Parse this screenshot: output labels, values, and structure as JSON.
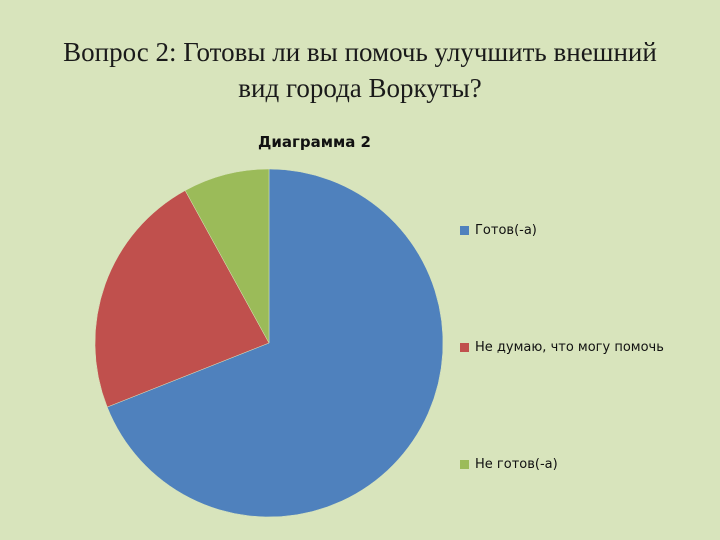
{
  "slide": {
    "title_line1": "Вопрос 2: Готовы ли вы помочь улучшить внешний",
    "title_line2": "вид города Воркуты?"
  },
  "chart_data": {
    "type": "pie",
    "title": "Диаграмма 2",
    "legend_position": "right",
    "categories": [
      "Готов(-а)",
      "Не думаю, что могу помочь",
      "Не готов(-а)"
    ],
    "values": [
      69,
      23,
      8
    ],
    "colors": [
      "#4f81bd",
      "#c0504d",
      "#9bbb59"
    ]
  }
}
